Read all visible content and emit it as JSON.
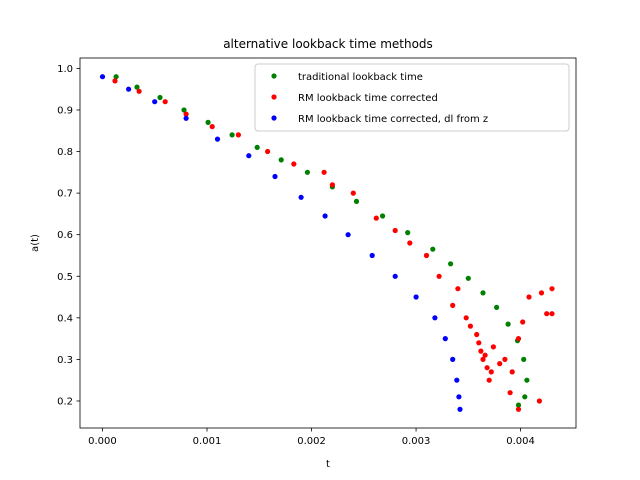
{
  "chart_data": {
    "type": "scatter",
    "title": "alternative lookback time methods",
    "xlabel": "t",
    "ylabel": "a(t)",
    "xlim": [
      -0.000215,
      0.00453
    ],
    "ylim": [
      0.135,
      1.025
    ],
    "x_ticks": [
      0.0,
      0.001,
      0.002,
      0.003,
      0.004
    ],
    "x_tick_labels": [
      "0.000",
      "0.001",
      "0.002",
      "0.003",
      "0.004"
    ],
    "y_ticks": [
      0.2,
      0.3,
      0.4,
      0.5,
      0.6,
      0.7,
      0.8,
      0.9,
      1.0
    ],
    "y_tick_labels": [
      "0.2",
      "0.3",
      "0.4",
      "0.5",
      "0.6",
      "0.7",
      "0.8",
      "0.9",
      "1.0"
    ],
    "legend_position": "top-right",
    "series": [
      {
        "name": "traditional lookback time",
        "color": "#008000",
        "x": [
          0.00013,
          0.00033,
          0.00055,
          0.00078,
          0.00101,
          0.00124,
          0.00148,
          0.00171,
          0.00196,
          0.0022,
          0.00243,
          0.00268,
          0.00292,
          0.00316,
          0.00333,
          0.0035,
          0.00364,
          0.00377,
          0.00388,
          0.00397,
          0.00403,
          0.00406,
          0.00404,
          0.00398
        ],
        "y": [
          0.98,
          0.955,
          0.93,
          0.9,
          0.87,
          0.84,
          0.81,
          0.78,
          0.75,
          0.715,
          0.68,
          0.645,
          0.605,
          0.565,
          0.53,
          0.495,
          0.46,
          0.425,
          0.385,
          0.345,
          0.3,
          0.25,
          0.21,
          0.19
        ]
      },
      {
        "name": "RM lookback time corrected",
        "color": "#ff0000",
        "x": [
          0.00012,
          0.00035,
          0.0006,
          0.0008,
          0.00105,
          0.0013,
          0.00158,
          0.00183,
          0.00212,
          0.0022,
          0.0024,
          0.00262,
          0.0028,
          0.00294,
          0.0031,
          0.00322,
          0.00335,
          0.0034,
          0.00348,
          0.00352,
          0.00358,
          0.0036,
          0.00362,
          0.00364,
          0.00366,
          0.00368,
          0.0037,
          0.00372,
          0.00374,
          0.0038,
          0.00385,
          0.00392,
          0.00398,
          0.00402,
          0.00408,
          0.0042,
          0.00425,
          0.0043,
          0.0043,
          0.00418,
          0.00398,
          0.0039
        ],
        "y": [
          0.97,
          0.945,
          0.92,
          0.89,
          0.86,
          0.84,
          0.8,
          0.77,
          0.75,
          0.72,
          0.7,
          0.64,
          0.61,
          0.58,
          0.55,
          0.5,
          0.43,
          0.47,
          0.4,
          0.38,
          0.36,
          0.34,
          0.32,
          0.3,
          0.31,
          0.28,
          0.25,
          0.27,
          0.33,
          0.29,
          0.3,
          0.27,
          0.35,
          0.39,
          0.45,
          0.46,
          0.41,
          0.47,
          0.41,
          0.2,
          0.18,
          0.22
        ]
      },
      {
        "name": "RM lookback time corrected, dl from z",
        "color": "#0000ff",
        "x": [
          0.0,
          0.00025,
          0.0005,
          0.0008,
          0.0011,
          0.0014,
          0.00165,
          0.0019,
          0.00213,
          0.00235,
          0.00258,
          0.0028,
          0.003,
          0.00318,
          0.00328,
          0.00335,
          0.00339,
          0.00341,
          0.00342
        ],
        "y": [
          0.98,
          0.95,
          0.92,
          0.88,
          0.83,
          0.79,
          0.74,
          0.69,
          0.645,
          0.6,
          0.55,
          0.5,
          0.45,
          0.4,
          0.35,
          0.3,
          0.25,
          0.21,
          0.18
        ]
      }
    ]
  }
}
